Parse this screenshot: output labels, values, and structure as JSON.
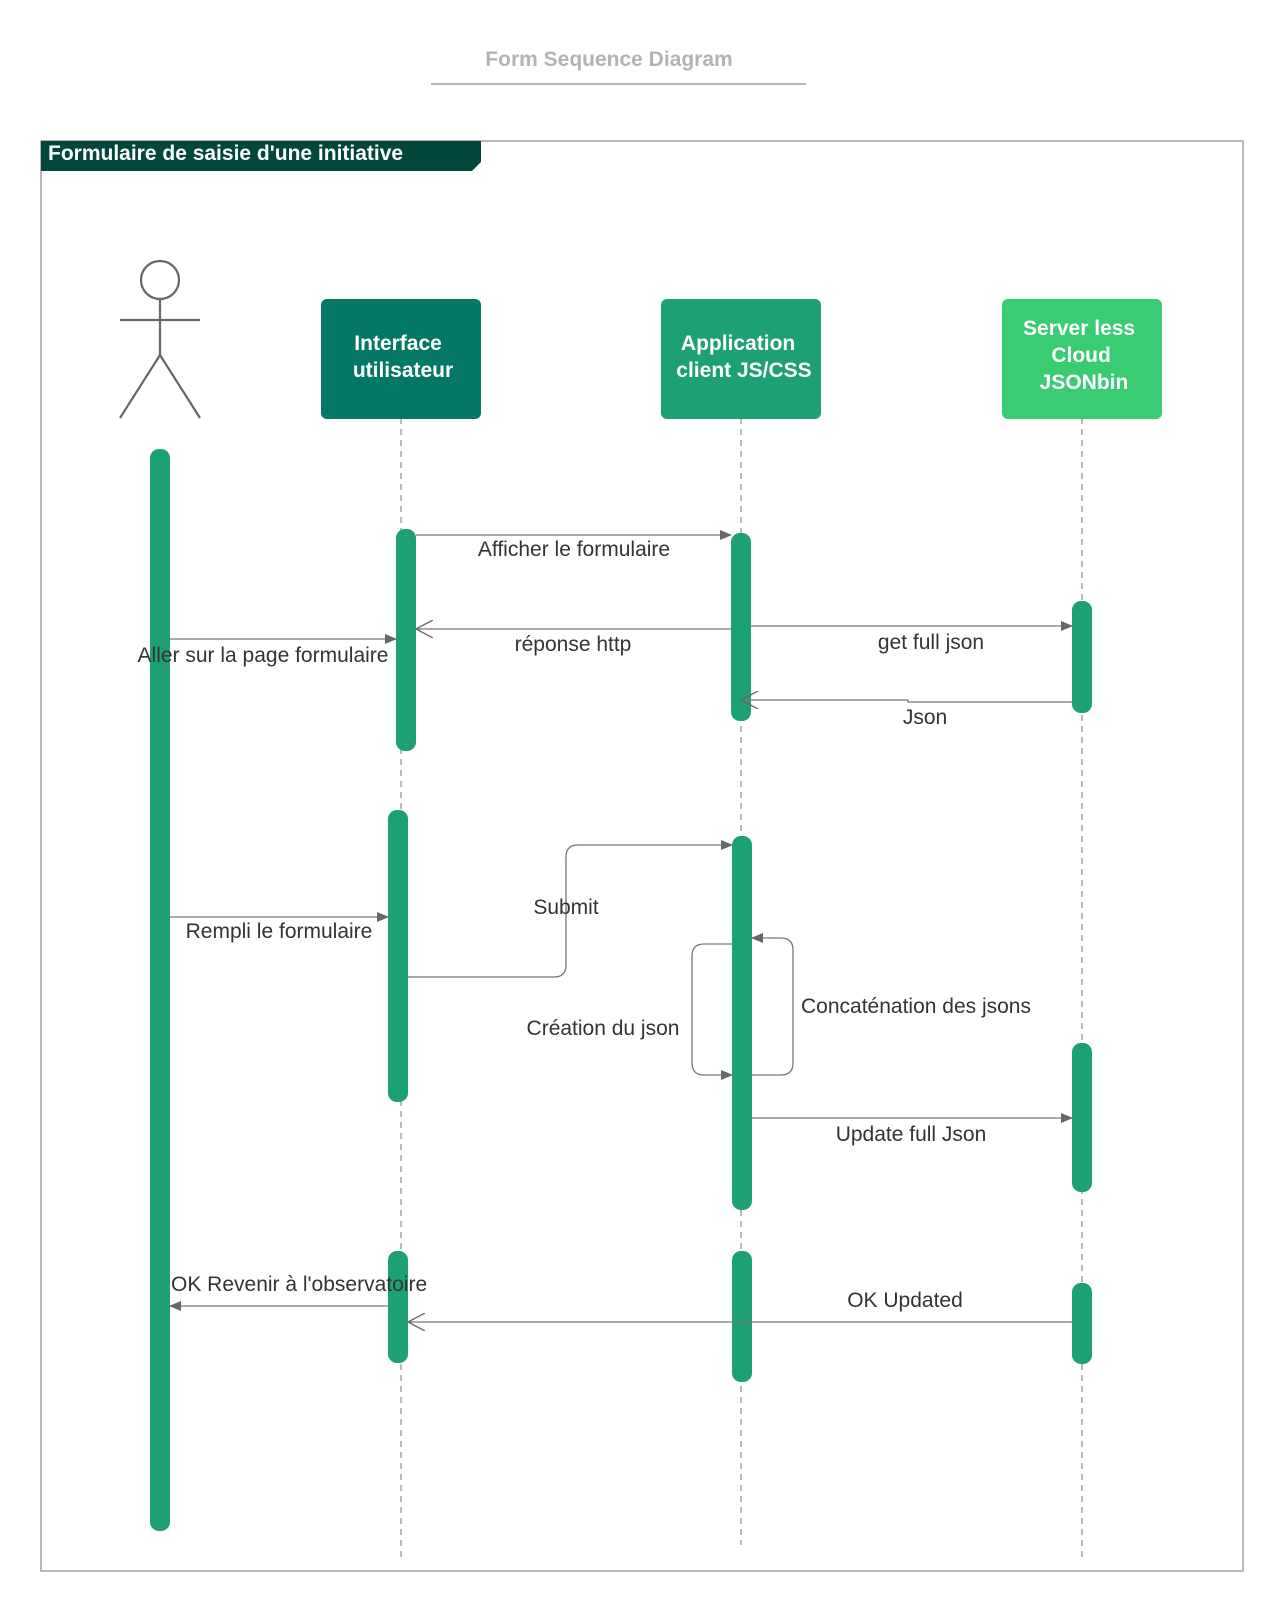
{
  "title": "Form Sequence Diagram",
  "frame": {
    "title": "Formulaire de saisie d'une initiative"
  },
  "colors": {
    "frame_header": "#03473c",
    "interface": "#047865",
    "application": "#1ea172",
    "server": "#3acc73",
    "activation": "#1ea172",
    "arrow": "#777777"
  },
  "actor": {
    "icon": "stick-figure-icon"
  },
  "participants": [
    {
      "id": "ui",
      "lines": [
        "Interface",
        "utilisateur"
      ]
    },
    {
      "id": "app",
      "lines": [
        "Application",
        "client JS/CSS"
      ]
    },
    {
      "id": "server",
      "lines": [
        "Server less",
        "Cloud",
        "JSONbin"
      ]
    }
  ],
  "messages": {
    "afficher": "Afficher le formulaire",
    "reponse": "réponse http",
    "get_json": "get full json",
    "aller": "Aller sur la page formulaire",
    "json": "Json",
    "submit": "Submit",
    "rempli": "Rempli le formulaire",
    "concat": "Concaténation des jsons",
    "creation": "Création du json",
    "update": "Update full Json",
    "ok_revenir": "OK Revenir à l'observatoire",
    "ok_updated": "OK Updated"
  }
}
